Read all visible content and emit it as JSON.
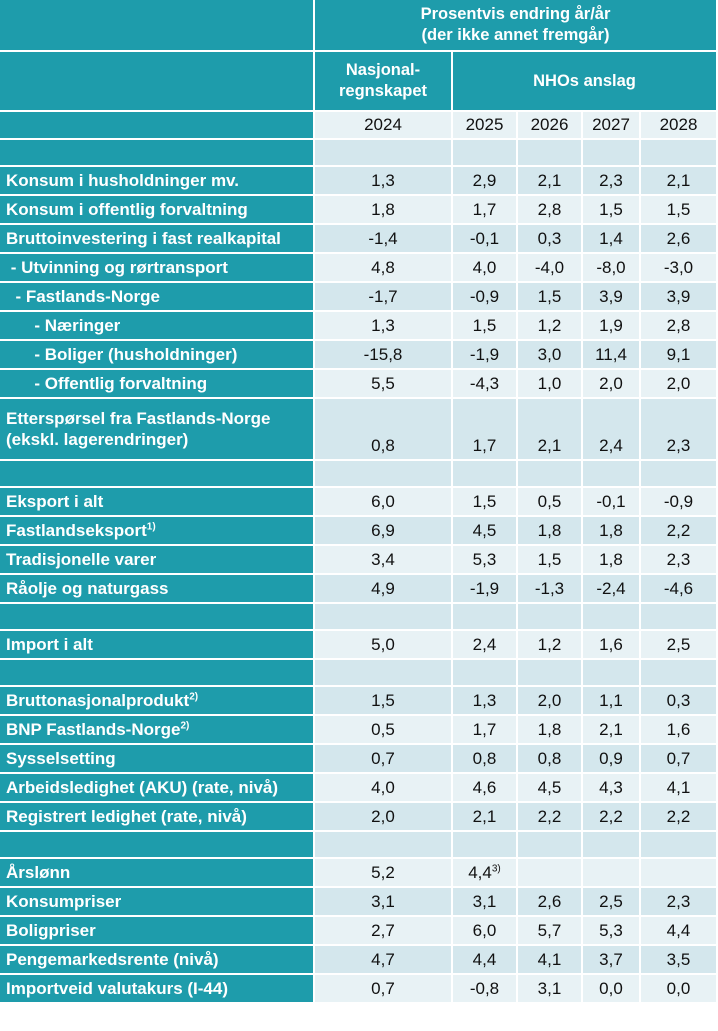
{
  "header": {
    "title": [
      "Prosentvis endring år/år",
      "(der ikke annet fremgår)"
    ],
    "historical": [
      "Nasjonal-",
      "regnskapet"
    ],
    "forecast": "NHOs anslag",
    "years": [
      "2024",
      "2025",
      "2026",
      "2027",
      "2028"
    ]
  },
  "table": {
    "groups": [
      [
        {
          "label": [
            "Konsum i husholdninger mv."
          ],
          "values": [
            "1,3",
            "2,9",
            "2,1",
            "2,3",
            "2,1"
          ]
        },
        {
          "label": [
            "Konsum i offentlig forvaltning"
          ],
          "values": [
            "1,8",
            "1,7",
            "2,8",
            "1,5",
            "1,5"
          ]
        },
        {
          "label": [
            "Bruttoinvestering i fast realkapital"
          ],
          "values": [
            "-1,4",
            "-0,1",
            "0,3",
            "1,4",
            "2,6"
          ]
        },
        {
          "label": [
            " - Utvinning og rørtransport"
          ],
          "values": [
            "4,8",
            "4,0",
            "-4,0",
            "-8,0",
            "-3,0"
          ]
        },
        {
          "label": [
            "  - Fastlands-Norge"
          ],
          "values": [
            "-1,7",
            "-0,9",
            "1,5",
            "3,9",
            "3,9"
          ]
        },
        {
          "label": [
            "      - Næringer"
          ],
          "values": [
            "1,3",
            "1,5",
            "1,2",
            "1,9",
            "2,8"
          ]
        },
        {
          "label": [
            "      - Boliger (husholdninger)"
          ],
          "values": [
            "-15,8",
            "-1,9",
            "3,0",
            "11,4",
            "9,1"
          ]
        },
        {
          "label": [
            "      - Offentlig forvaltning"
          ],
          "values": [
            "5,5",
            "-4,3",
            "1,0",
            "2,0",
            "2,0"
          ]
        },
        {
          "label": [
            "Etterspørsel fra Fastlands-Norge",
            "(ekskl. lagerendringer)"
          ],
          "values": [
            "0,8",
            "1,7",
            "2,1",
            "2,4",
            "2,3"
          ]
        }
      ],
      [
        {
          "label": [
            "Eksport i alt"
          ],
          "values": [
            "6,0",
            "1,5",
            "0,5",
            "-0,1",
            "-0,9"
          ]
        },
        {
          "label": [
            "Fastlandseksport"
          ],
          "note": "1)",
          "values": [
            "6,9",
            "4,5",
            "1,8",
            "1,8",
            "2,2"
          ]
        },
        {
          "label": [
            "Tradisjonelle varer"
          ],
          "values": [
            "3,4",
            "5,3",
            "1,5",
            "1,8",
            "2,3"
          ]
        },
        {
          "label": [
            "Råolje og naturgass"
          ],
          "values": [
            "4,9",
            "-1,9",
            "-1,3",
            "-2,4",
            "-4,6"
          ]
        }
      ],
      [
        {
          "label": [
            "Import i alt"
          ],
          "values": [
            "5,0",
            "2,4",
            "1,2",
            "1,6",
            "2,5"
          ]
        }
      ],
      [
        {
          "label": [
            "Bruttonasjonalprodukt"
          ],
          "note": "2)",
          "values": [
            "1,5",
            "1,3",
            "2,0",
            "1,1",
            "0,3"
          ]
        },
        {
          "label": [
            "BNP Fastlands-Norge"
          ],
          "note": "2)",
          "values": [
            "0,5",
            "1,7",
            "1,8",
            "2,1",
            "1,6"
          ]
        },
        {
          "label": [
            "Sysselsetting"
          ],
          "values": [
            "0,7",
            "0,8",
            "0,8",
            "0,9",
            "0,7"
          ]
        },
        {
          "label": [
            "Arbeidsledighet (AKU) (rate, nivå)"
          ],
          "values": [
            "4,0",
            "4,6",
            "4,5",
            "4,3",
            "4,1"
          ]
        },
        {
          "label": [
            "Registrert ledighet (rate, nivå)"
          ],
          "values": [
            "2,0",
            "2,1",
            "2,2",
            "2,2",
            "2,2"
          ]
        }
      ],
      [
        {
          "label": [
            "Årslønn"
          ],
          "values": [
            "5,2",
            "4,4",
            null,
            null,
            null
          ],
          "value_notes": [
            null,
            "3)",
            null,
            null,
            null
          ]
        },
        {
          "label": [
            "Konsumpriser"
          ],
          "values": [
            "3,1",
            "3,1",
            "2,6",
            "2,5",
            "2,3"
          ]
        },
        {
          "label": [
            "Boligpriser"
          ],
          "values": [
            "2,7",
            "6,0",
            "5,7",
            "5,3",
            "4,4"
          ]
        },
        {
          "label": [
            "Pengemarkedsrente (nivå)"
          ],
          "values": [
            "4,7",
            "4,4",
            "4,1",
            "3,7",
            "3,5"
          ]
        },
        {
          "label": [
            "Importveid valutakurs (I-44)"
          ],
          "values": [
            "0,7",
            "-0,8",
            "3,1",
            "0,0",
            "0,0"
          ]
        }
      ]
    ]
  }
}
